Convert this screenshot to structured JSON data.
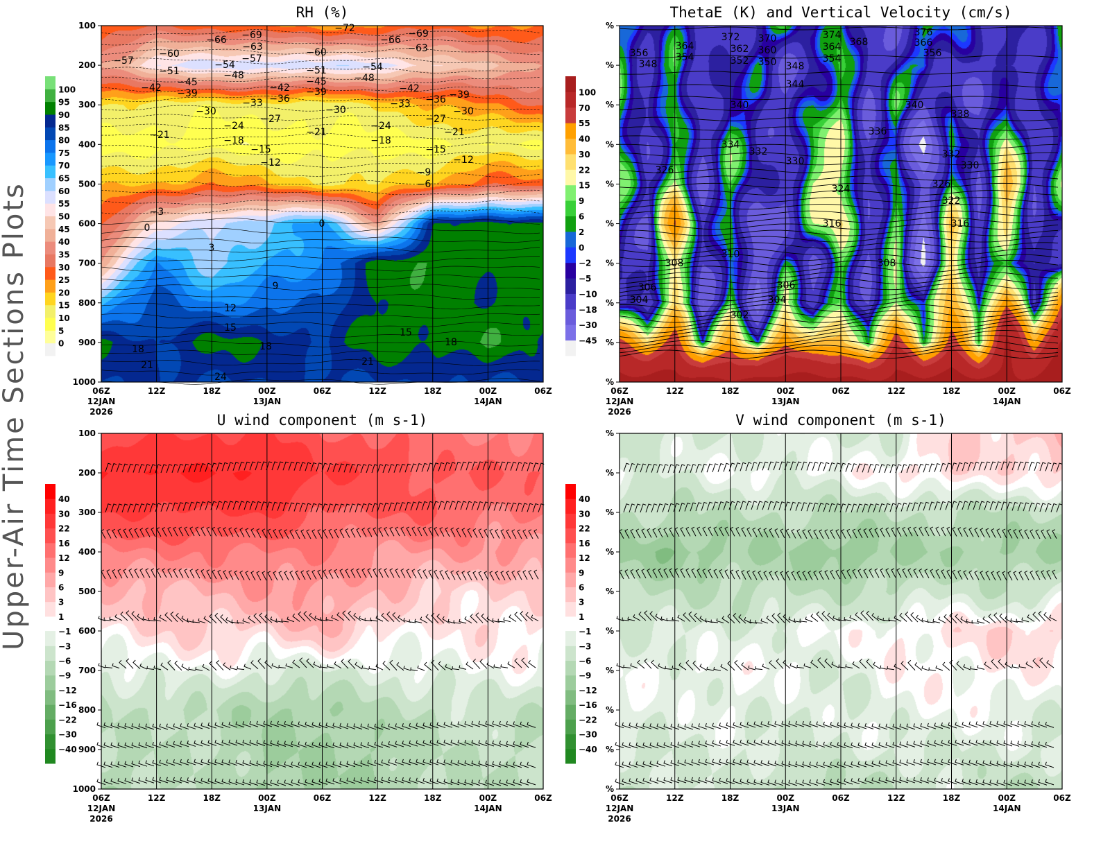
{
  "page": {
    "side_title": "Upper-Air Time Sections Plots"
  },
  "chart_data": [
    {
      "id": "rh",
      "type": "heatmap",
      "title": "RH (%)",
      "y_ticks": [
        "100",
        "200",
        "300",
        "400",
        "500",
        "600",
        "700",
        "800",
        "900",
        "1000"
      ],
      "ylim": [
        1000,
        100
      ],
      "x_ticks": [
        "06Z",
        "12Z",
        "18Z",
        "00Z",
        "06Z",
        "12Z",
        "18Z",
        "00Z",
        "06Z"
      ],
      "x_dates": {
        "0": "12JAN",
        "3": "13JAN",
        "7": "14JAN"
      },
      "x_year": "2026",
      "grid": "vertical lines at each tick",
      "colorbar": {
        "labels": [
          "0",
          "5",
          "10",
          "15",
          "20",
          "25",
          "30",
          "35",
          "40",
          "45",
          "50",
          "55",
          "60",
          "65",
          "70",
          "75",
          "80",
          "85",
          "90",
          "95",
          "100"
        ],
        "levels": [
          0,
          5,
          10,
          15,
          20,
          25,
          30,
          35,
          40,
          45,
          50,
          55,
          60,
          65,
          70,
          75,
          80,
          85,
          90,
          95,
          100
        ],
        "colors": [
          "#f2f2f2",
          "#ffff9a",
          "#ffff50",
          "#f3f06a",
          "#ffd520",
          "#ffa01a",
          "#ff5a1a",
          "#e87862",
          "#ec8c7c",
          "#f0b098",
          "#f6c8b4",
          "#ffe4e6",
          "#dce0ff",
          "#a0d0ff",
          "#38c0ff",
          "#1898ff",
          "#0c74ec",
          "#0248b4",
          "#042890",
          "#008000",
          "#40b040",
          "#78e078"
        ]
      },
      "field_times": 9,
      "field_levels": [
        100,
        200,
        300,
        400,
        500,
        600,
        700,
        800,
        900,
        1000
      ],
      "field": [
        [
          25,
          30,
          28,
          25,
          22,
          25,
          28,
          25,
          25
        ],
        [
          40,
          55,
          58,
          60,
          58,
          58,
          50,
          45,
          40
        ],
        [
          15,
          12,
          12,
          12,
          12,
          15,
          20,
          25,
          30
        ],
        [
          8,
          8,
          7,
          7,
          7,
          8,
          8,
          10,
          10
        ],
        [
          18,
          20,
          25,
          20,
          15,
          15,
          20,
          30,
          25
        ],
        [
          30,
          50,
          60,
          65,
          72,
          40,
          88,
          92,
          92
        ],
        [
          40,
          78,
          60,
          70,
          75,
          92,
          95,
          92,
          93
        ],
        [
          70,
          82,
          75,
          78,
          80,
          92,
          92,
          90,
          95
        ],
        [
          90,
          85,
          92,
          90,
          85,
          93,
          92,
          95,
          88
        ],
        [
          85,
          85,
          85,
          85,
          85,
          85,
          85,
          85,
          85
        ]
      ],
      "contour_labels": [
        "-57",
        "-66",
        "-69",
        "-72",
        "-66",
        "-69",
        "-60",
        "-63",
        "-63",
        "-57",
        "-54",
        "-60",
        "-51",
        "-51",
        "-54",
        "-48",
        "-48",
        "-45",
        "-45",
        "-42",
        "-42",
        "-42",
        "-39",
        "-39",
        "-39",
        "-36",
        "-36",
        "-33",
        "-33",
        "-30",
        "-30",
        "-30",
        "-27",
        "-27",
        "-24",
        "-24",
        "-21",
        "-21",
        "-21",
        "-18",
        "-18",
        "-15",
        "-15",
        "-12",
        "-12",
        "-9",
        "-6",
        "-3",
        "0",
        "0",
        "3",
        "9",
        "12",
        "15",
        "15",
        "18",
        "18",
        "18",
        "21",
        "21",
        "24"
      ]
    },
    {
      "id": "thetae",
      "type": "heatmap",
      "title": "ThetaE (K) and Vertical Velocity (cm/s)",
      "y_ticks": [
        "%",
        "%",
        "%",
        "%",
        "%",
        "%",
        "%",
        "%",
        "%",
        "%"
      ],
      "x_ticks": [
        "06Z",
        "12Z",
        "18Z",
        "00Z",
        "06Z",
        "12Z",
        "18Z",
        "00Z",
        "06Z"
      ],
      "x_dates": {
        "0": "12JAN",
        "3": "13JAN",
        "7": "14JAN"
      },
      "x_year": "2026",
      "grid": "vertical lines at each tick",
      "colorbar": {
        "labels": [
          "-45",
          "-30",
          "-18",
          "-10",
          "-5",
          "-2",
          "0",
          "2",
          "6",
          "9",
          "15",
          "22",
          "30",
          "40",
          "55",
          "70",
          "100"
        ],
        "levels": [
          -45,
          -30,
          -18,
          -10,
          -5,
          -2,
          0,
          2,
          6,
          9,
          15,
          22,
          30,
          40,
          55,
          70,
          100
        ],
        "colors": [
          "#f2f2f2",
          "#7c70e8",
          "#6a5cdc",
          "#4a3cc8",
          "#2c20a0",
          "#2800a0",
          "#1c38ff",
          "#1868d8",
          "#10a010",
          "#38d038",
          "#80f070",
          "#fff8a8",
          "#ffe070",
          "#ffbc38",
          "#ffa000",
          "#c83c3c",
          "#b82828",
          "#a81e1e"
        ]
      },
      "field_times": 17,
      "field": [
        [
          0,
          -10,
          -5,
          -10,
          -18,
          -5,
          2,
          -10,
          6,
          -10,
          -18,
          -5,
          2,
          -10,
          -5,
          -10,
          0
        ],
        [
          6,
          -10,
          9,
          -18,
          -10,
          2,
          -18,
          -10,
          9,
          -18,
          -5,
          6,
          -18,
          -10,
          -18,
          -10,
          2
        ],
        [
          6,
          -18,
          9,
          -18,
          2,
          -10,
          -18,
          2,
          9,
          -18,
          6,
          -18,
          -10,
          -18,
          2,
          -18,
          -2
        ],
        [
          9,
          -18,
          6,
          -18,
          9,
          -5,
          -18,
          9,
          15,
          -18,
          2,
          -50,
          9,
          -18,
          22,
          -18,
          6
        ],
        [
          9,
          -10,
          15,
          -18,
          6,
          -10,
          -18,
          15,
          22,
          -18,
          6,
          -30,
          9,
          -18,
          40,
          -18,
          9
        ],
        [
          2,
          -18,
          55,
          -18,
          9,
          -30,
          -18,
          9,
          22,
          -18,
          15,
          -30,
          30,
          -18,
          22,
          -10,
          -5
        ],
        [
          -10,
          -18,
          30,
          -18,
          2,
          -30,
          2,
          -18,
          9,
          -18,
          9,
          -50,
          30,
          -10,
          9,
          -18,
          -10
        ],
        [
          -5,
          -18,
          22,
          -30,
          9,
          -30,
          15,
          -18,
          6,
          -18,
          22,
          -5,
          40,
          -10,
          55,
          -10,
          55
        ],
        [
          55,
          30,
          70,
          2,
          40,
          -5,
          55,
          30,
          40,
          -5,
          70,
          2,
          70,
          9,
          100,
          40,
          100
        ],
        [
          110,
          110,
          110,
          110,
          110,
          110,
          110,
          110,
          110,
          110,
          110,
          110,
          110,
          110,
          110,
          110,
          110
        ]
      ],
      "contour_labels": [
        "356",
        "348",
        "364",
        "354",
        "372",
        "362",
        "352",
        "370",
        "360",
        "350",
        "374",
        "364",
        "354",
        "368",
        "376",
        "366",
        "356",
        "348",
        "344",
        "340",
        "340",
        "338",
        "336",
        "334",
        "332",
        "332",
        "330",
        "330",
        "326",
        "326",
        "324",
        "322",
        "316",
        "316",
        "310",
        "308",
        "308",
        "306",
        "306",
        "304",
        "304",
        "302"
      ]
    },
    {
      "id": "u",
      "type": "heatmap",
      "title": "U wind component (m s-1)",
      "y_ticks": [
        "100",
        "200",
        "300",
        "400",
        "500",
        "600",
        "700",
        "800",
        "900",
        "1000"
      ],
      "x_ticks": [
        "06Z",
        "12Z",
        "18Z",
        "00Z",
        "06Z",
        "12Z",
        "18Z",
        "00Z",
        "06Z"
      ],
      "x_dates": {
        "0": "12JAN",
        "3": "13JAN",
        "7": "14JAN"
      },
      "x_year": "2026",
      "grid": "vertical lines at each tick",
      "wind_barbs": true,
      "colorbar": {
        "labels": [
          "-40",
          "-30",
          "-22",
          "-16",
          "-12",
          "-9",
          "-6",
          "-3",
          "-1",
          "1",
          "3",
          "6",
          "9",
          "12",
          "16",
          "22",
          "30",
          "40"
        ],
        "levels": [
          -40,
          -30,
          -22,
          -16,
          -12,
          -9,
          -6,
          -3,
          -1,
          1,
          3,
          6,
          9,
          12,
          16,
          22,
          30,
          40
        ],
        "colors": [
          "#208820",
          "#309030",
          "#4ca04c",
          "#64ac64",
          "#80bc80",
          "#9ccc9c",
          "#b4d8b4",
          "#cce4cc",
          "#e4f0e4",
          "#ffffff",
          "#ffe0e0",
          "#ffc4c4",
          "#ffa8a8",
          "#ff8a8a",
          "#ff7070",
          "#ff5050",
          "#ff3838",
          "#ff2020",
          "#ff0000"
        ]
      },
      "field_times": 9,
      "field": [
        [
          16,
          22,
          22,
          22,
          16,
          16,
          12,
          12,
          12
        ],
        [
          30,
          30,
          30,
          30,
          22,
          22,
          16,
          16,
          16
        ],
        [
          22,
          22,
          22,
          22,
          16,
          16,
          16,
          12,
          12
        ],
        [
          12,
          12,
          12,
          12,
          12,
          9,
          9,
          9,
          9
        ],
        [
          6,
          6,
          6,
          9,
          9,
          6,
          3,
          3,
          3
        ],
        [
          1,
          3,
          3,
          3,
          6,
          2,
          0,
          2,
          1
        ],
        [
          -3,
          -1,
          -1,
          -3,
          -3,
          -3,
          -1,
          -1,
          -1
        ],
        [
          -6,
          -6,
          -6,
          -9,
          -9,
          -6,
          -6,
          -3,
          -6
        ],
        [
          -6,
          -6,
          -6,
          -9,
          -9,
          -9,
          -6,
          -6,
          -6
        ],
        [
          -9,
          -6,
          -6,
          -9,
          -9,
          -9,
          -6,
          -6,
          -6
        ]
      ]
    },
    {
      "id": "v",
      "type": "heatmap",
      "title": "V wind component (m s-1)",
      "y_ticks": [
        "%",
        "%",
        "%",
        "%",
        "%",
        "%",
        "%",
        "%",
        "%",
        "%"
      ],
      "x_ticks": [
        "06Z",
        "12Z",
        "18Z",
        "00Z",
        "06Z",
        "12Z",
        "18Z",
        "00Z",
        "06Z"
      ],
      "x_dates": {
        "0": "12JAN",
        "3": "13JAN",
        "7": "14JAN"
      },
      "x_year": "2026",
      "grid": "vertical lines at each tick",
      "wind_barbs": true,
      "colorbar": {
        "labels": [
          "-40",
          "-30",
          "-22",
          "-16",
          "-12",
          "-9",
          "-6",
          "-3",
          "-1",
          "1",
          "3",
          "6",
          "9",
          "12",
          "16",
          "22",
          "30",
          "40"
        ],
        "levels": [
          -40,
          -30,
          -22,
          -16,
          -12,
          -9,
          -6,
          -3,
          -1,
          1,
          3,
          6,
          9,
          12,
          16,
          22,
          30,
          40
        ],
        "colors": [
          "#208820",
          "#309030",
          "#4ca04c",
          "#64ac64",
          "#80bc80",
          "#9ccc9c",
          "#b4d8b4",
          "#cce4cc",
          "#e4f0e4",
          "#ffffff",
          "#ffe0e0",
          "#ffc4c4",
          "#ffa8a8",
          "#ff8a8a",
          "#ff7070",
          "#ff5050",
          "#ff3838",
          "#ff2020",
          "#ff0000"
        ]
      },
      "field_times": 9,
      "field": [
        [
          -6,
          -3,
          -3,
          -3,
          -3,
          -3,
          3,
          3,
          6
        ],
        [
          -1,
          -3,
          -1,
          -1,
          -1,
          1,
          3,
          1,
          3
        ],
        [
          -6,
          -6,
          -6,
          -6,
          -6,
          -6,
          -6,
          -6,
          -6
        ],
        [
          -9,
          -12,
          -9,
          -9,
          -12,
          -9,
          -9,
          -9,
          -9
        ],
        [
          -6,
          -6,
          -6,
          -6,
          -6,
          -6,
          -3,
          -6,
          -3
        ],
        [
          -3,
          -3,
          -3,
          -1,
          -1,
          1,
          1,
          3,
          3
        ],
        [
          -1,
          -1,
          -1,
          -1,
          -3,
          0,
          0,
          1,
          0
        ],
        [
          -1,
          -3,
          -1,
          -3,
          -3,
          -1,
          -1,
          -1,
          -3
        ],
        [
          -3,
          -3,
          -3,
          -3,
          -3,
          -3,
          -3,
          -3,
          -3
        ],
        [
          -6,
          -3,
          -3,
          -6,
          -6,
          -6,
          -3,
          -6,
          -6
        ]
      ]
    }
  ]
}
